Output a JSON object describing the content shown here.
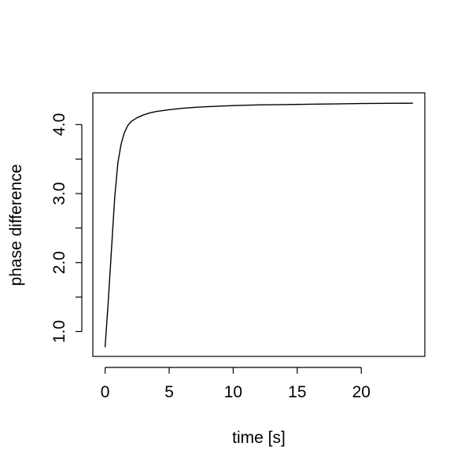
{
  "chart_data": {
    "type": "line",
    "title": "",
    "xlabel": "time [s]",
    "ylabel": "phase difference",
    "xlim": [
      -0.96,
      24.96
    ],
    "ylim": [
      0.64,
      4.46
    ],
    "x_ticks": [
      0,
      5,
      10,
      15,
      20
    ],
    "x_tick_labels": [
      "0",
      "5",
      "10",
      "15",
      "20"
    ],
    "y_ticks": [
      1.0,
      1.5,
      2.0,
      2.5,
      3.0,
      3.5,
      4.0
    ],
    "y_tick_labels": [
      "1.0",
      "",
      "2.0",
      "",
      "3.0",
      "",
      "4.0"
    ],
    "grid": false,
    "line_color": "#000000",
    "series": [
      {
        "x": [
          0,
          0.25,
          0.5,
          0.75,
          1.0,
          1.25,
          1.5,
          1.75,
          2.0,
          2.5,
          3.0,
          3.5,
          4.0,
          5.0,
          6.0,
          7.0,
          8.0,
          10.0,
          12.0,
          14.0,
          16.0,
          18.0,
          20.0,
          22.0,
          24.0
        ],
        "y": [
          0.78,
          1.45,
          2.2,
          2.95,
          3.45,
          3.72,
          3.88,
          3.98,
          4.04,
          4.1,
          4.14,
          4.17,
          4.19,
          4.215,
          4.235,
          4.25,
          4.26,
          4.275,
          4.285,
          4.29,
          4.295,
          4.3,
          4.305,
          4.308,
          4.31
        ]
      }
    ]
  }
}
